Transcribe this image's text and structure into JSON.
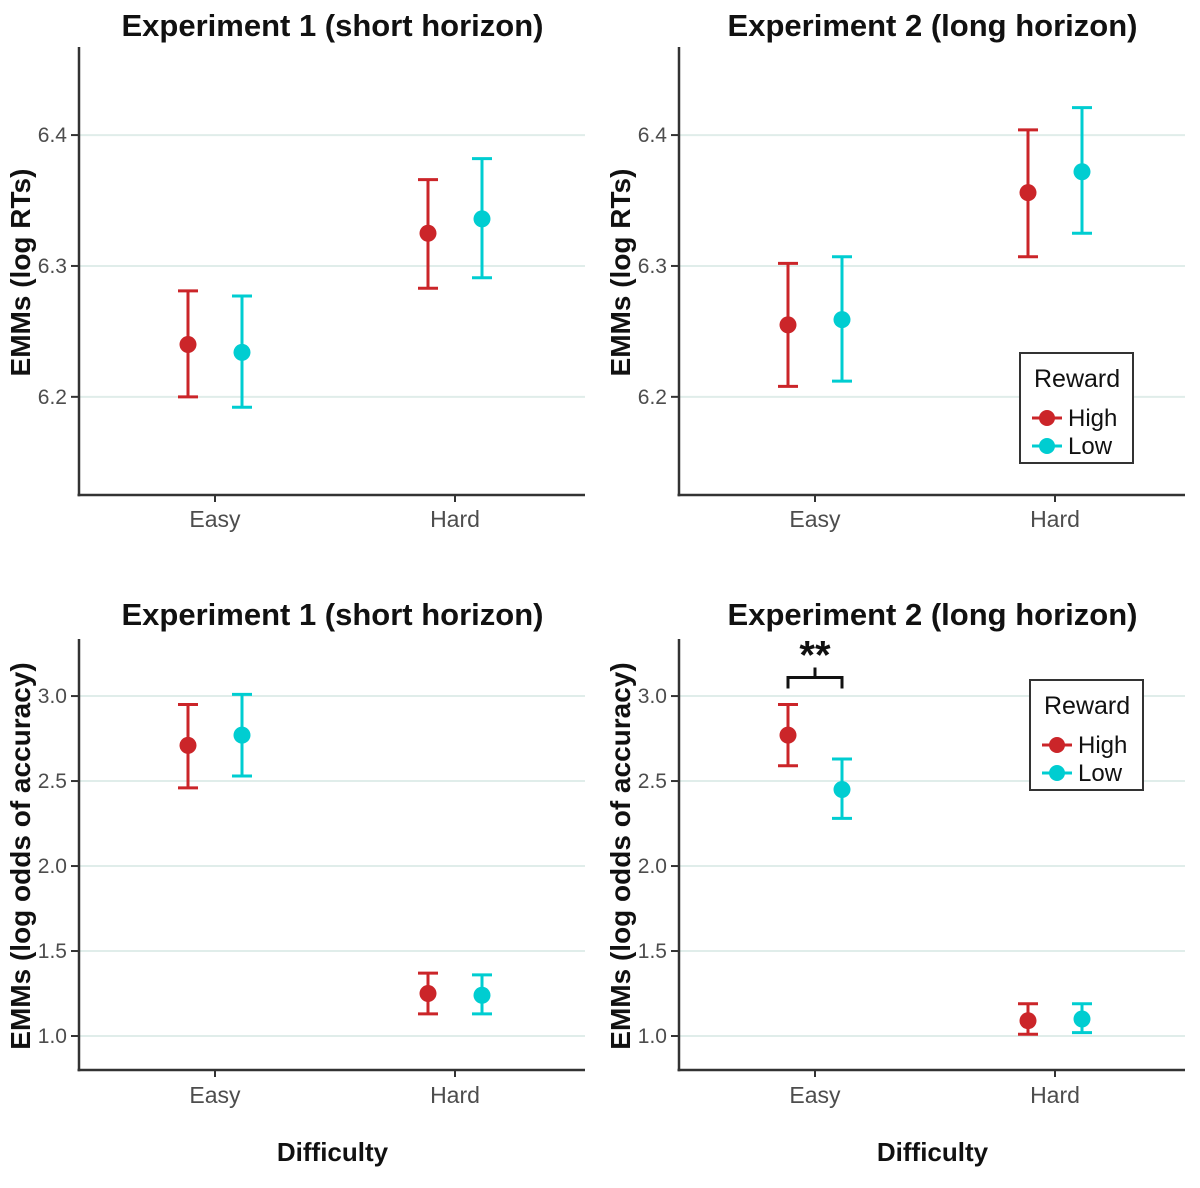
{
  "figure_title": "",
  "shared": {
    "x_axis_label": "Difficulty",
    "categories": [
      "Easy",
      "Hard"
    ],
    "legend_title": "Reward",
    "colors": {
      "high": "#CB2529",
      "low": "#00CDD1",
      "gridline": "#E0EDEA",
      "axis_line": "#333333",
      "tick_text": "#4D4D4D",
      "title_text": "#111111"
    }
  },
  "chart_data": [
    {
      "type": "scatter",
      "subtype": "pointrange",
      "title": "Experiment 1 (short horizon)",
      "xlabel": "",
      "ylabel": "EMMs (log RTs)",
      "categories": [
        "Easy",
        "Hard"
      ],
      "ylim": [
        6.125,
        6.465
      ],
      "yticks": {
        "values": [
          6.2,
          6.3,
          6.4
        ],
        "labels": [
          "6.2",
          "6.3",
          "6.4"
        ]
      },
      "grid": true,
      "legend": null,
      "series": [
        {
          "name": "High",
          "color": "#CB2529",
          "points": [
            {
              "x": "Easy",
              "y": 6.24,
              "ci_low": 6.2,
              "ci_high": 6.281
            },
            {
              "x": "Hard",
              "y": 6.325,
              "ci_low": 6.283,
              "ci_high": 6.366
            }
          ]
        },
        {
          "name": "Low",
          "color": "#00CDD1",
          "points": [
            {
              "x": "Easy",
              "y": 6.234,
              "ci_low": 6.192,
              "ci_high": 6.277
            },
            {
              "x": "Hard",
              "y": 6.336,
              "ci_low": 6.291,
              "ci_high": 6.382
            }
          ]
        }
      ]
    },
    {
      "type": "scatter",
      "subtype": "pointrange",
      "title": "Experiment 2 (long horizon)",
      "xlabel": "",
      "ylabel": "EMMs (log RTs)",
      "categories": [
        "Easy",
        "Hard"
      ],
      "ylim": [
        6.125,
        6.465
      ],
      "yticks": {
        "values": [
          6.2,
          6.3,
          6.4
        ],
        "labels": [
          "6.2",
          "6.3",
          "6.4"
        ]
      },
      "grid": true,
      "legend": {
        "title": "Reward",
        "position": "bottom-right",
        "items": [
          {
            "label": "High",
            "color": "#CB2529"
          },
          {
            "label": "Low",
            "color": "#00CDD1"
          }
        ]
      },
      "series": [
        {
          "name": "High",
          "color": "#CB2529",
          "points": [
            {
              "x": "Easy",
              "y": 6.255,
              "ci_low": 6.208,
              "ci_high": 6.302
            },
            {
              "x": "Hard",
              "y": 6.356,
              "ci_low": 6.307,
              "ci_high": 6.404
            }
          ]
        },
        {
          "name": "Low",
          "color": "#00CDD1",
          "points": [
            {
              "x": "Easy",
              "y": 6.259,
              "ci_low": 6.212,
              "ci_high": 6.307
            },
            {
              "x": "Hard",
              "y": 6.372,
              "ci_low": 6.325,
              "ci_high": 6.421
            }
          ]
        }
      ]
    },
    {
      "type": "scatter",
      "subtype": "pointrange",
      "title": "Experiment 1 (short horizon)",
      "xlabel": "Difficulty",
      "ylabel": "EMMs (log odds of accuracy)",
      "categories": [
        "Easy",
        "Hard"
      ],
      "ylim": [
        0.8,
        3.318
      ],
      "yticks": {
        "values": [
          1.0,
          1.5,
          2.0,
          2.5,
          3.0
        ],
        "labels": [
          "1.0",
          "1.5",
          "2.0",
          "2.5",
          "3.0"
        ]
      },
      "grid": true,
      "legend": null,
      "series": [
        {
          "name": "High",
          "color": "#CB2529",
          "points": [
            {
              "x": "Easy",
              "y": 2.71,
              "ci_low": 2.46,
              "ci_high": 2.95
            },
            {
              "x": "Hard",
              "y": 1.25,
              "ci_low": 1.13,
              "ci_high": 1.37
            }
          ]
        },
        {
          "name": "Low",
          "color": "#00CDD1",
          "points": [
            {
              "x": "Easy",
              "y": 2.77,
              "ci_low": 2.53,
              "ci_high": 3.01
            },
            {
              "x": "Hard",
              "y": 1.24,
              "ci_low": 1.13,
              "ci_high": 1.36
            }
          ]
        }
      ]
    },
    {
      "type": "scatter",
      "subtype": "pointrange",
      "title": "Experiment 2 (long horizon)",
      "xlabel": "Difficulty",
      "ylabel": "EMMs (log odds of accuracy)",
      "categories": [
        "Easy",
        "Hard"
      ],
      "ylim": [
        0.8,
        3.318
      ],
      "yticks": {
        "values": [
          1.0,
          1.5,
          2.0,
          2.5,
          3.0
        ],
        "labels": [
          "1.0",
          "1.5",
          "2.0",
          "2.5",
          "3.0"
        ]
      },
      "grid": true,
      "legend": {
        "title": "Reward",
        "position": "top-right",
        "items": [
          {
            "label": "High",
            "color": "#CB2529"
          },
          {
            "label": "Low",
            "color": "#00CDD1"
          }
        ]
      },
      "annotation": {
        "text": "**",
        "category": "Easy",
        "between": [
          "High",
          "Low"
        ]
      },
      "series": [
        {
          "name": "High",
          "color": "#CB2529",
          "points": [
            {
              "x": "Easy",
              "y": 2.77,
              "ci_low": 2.59,
              "ci_high": 2.95
            },
            {
              "x": "Hard",
              "y": 1.09,
              "ci_low": 1.01,
              "ci_high": 1.19
            }
          ]
        },
        {
          "name": "Low",
          "color": "#00CDD1",
          "points": [
            {
              "x": "Easy",
              "y": 2.45,
              "ci_low": 2.28,
              "ci_high": 2.63
            },
            {
              "x": "Hard",
              "y": 1.1,
              "ci_low": 1.02,
              "ci_high": 1.19
            }
          ]
        }
      ]
    }
  ]
}
